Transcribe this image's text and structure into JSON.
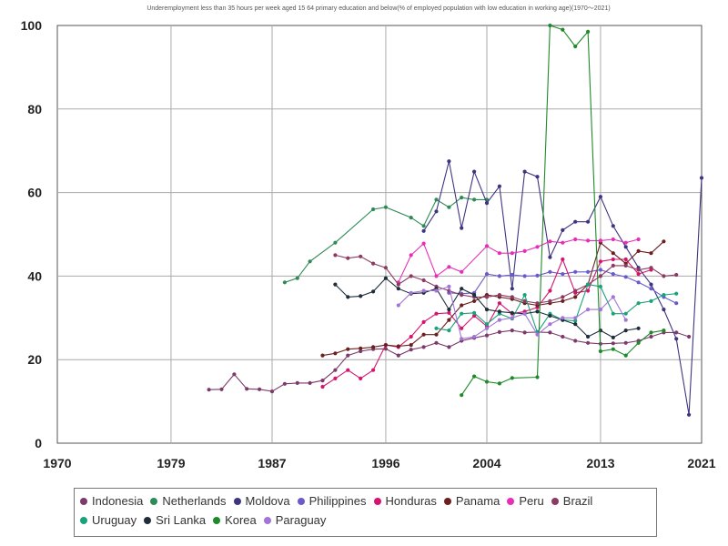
{
  "chart_data": {
    "type": "line",
    "title": "Underemployment less than 35 hours per week aged 15 64 primary education and below(% of employed population with low education in working age)(1970～2021)",
    "ylabel": "",
    "xlabel": "",
    "xlim": [
      1970,
      2021
    ],
    "ylim": [
      0,
      100
    ],
    "x_ticks": [
      1970,
      1979,
      1987,
      1996,
      2004,
      2013,
      2021
    ],
    "y_ticks": [
      0,
      20,
      40,
      60,
      80,
      100
    ],
    "grid": true,
    "legend_position": "bottom",
    "series": [
      {
        "name": "Indonesia",
        "color": "#7b3a6b",
        "x": [
          1982,
          1983,
          1984,
          1985,
          1986,
          1987,
          1988,
          1989,
          1990,
          1991,
          1992,
          1993,
          1994,
          1995,
          1996,
          1997,
          1998,
          1999,
          2000,
          2001,
          2002,
          2003,
          2004,
          2005,
          2006,
          2007,
          2008,
          2009,
          2010,
          2011,
          2012,
          2013,
          2014,
          2015,
          2016,
          2017,
          2018,
          2019,
          2020
        ],
        "y": [
          12.8,
          12.9,
          16.5,
          13.0,
          12.9,
          12.4,
          14.2,
          14.4,
          14.4,
          15.0,
          17.5,
          21.0,
          22.0,
          22.5,
          22.6,
          21.0,
          22.4,
          23.0,
          24.0,
          23.0,
          24.5,
          25.2,
          25.8,
          26.6,
          27.0,
          26.5,
          26.6,
          26.5,
          25.5,
          24.5,
          24.0,
          23.8,
          23.9,
          24.0,
          24.5,
          25.5,
          26.5,
          26.5,
          25.5
        ]
      },
      {
        "name": "Netherlands",
        "color": "#2e8b57",
        "x": [
          1988,
          1989,
          1990,
          1992,
          1995,
          1996,
          1998,
          1999,
          2000,
          2001,
          2002,
          2003,
          2004
        ],
        "y": [
          38.5,
          39.5,
          43.5,
          48.0,
          56.0,
          56.5,
          54.0,
          52.0,
          58.3,
          56.5,
          58.8,
          58.3,
          58.3
        ]
      },
      {
        "name": "Moldova",
        "color": "#3d3580",
        "x": [
          1999,
          2000,
          2001,
          2002,
          2003,
          2004,
          2005,
          2006,
          2007,
          2008,
          2009,
          2010,
          2011,
          2012,
          2013,
          2014,
          2015,
          2016,
          2017,
          2018,
          2019,
          2020,
          2021
        ],
        "y": [
          50.8,
          55.5,
          67.5,
          51.5,
          65.0,
          57.5,
          61.5,
          37.0,
          65.0,
          63.8,
          44.5,
          51.0,
          53.0,
          53.0,
          59.0,
          52.0,
          47.0,
          42.0,
          38.0,
          32.0,
          25.0,
          6.8,
          63.5
        ]
      },
      {
        "name": "Philippines",
        "color": "#6a5acd",
        "x": [
          2001,
          2002,
          2003,
          2004,
          2005,
          2006,
          2007,
          2008,
          2009,
          2010,
          2011,
          2012,
          2013,
          2014,
          2015,
          2016,
          2017,
          2018,
          2019
        ],
        "y": [
          36.0,
          35.8,
          36.0,
          40.5,
          40.0,
          40.3,
          40.0,
          40.1,
          41.0,
          40.5,
          41.0,
          41.0,
          41.5,
          40.5,
          39.8,
          38.5,
          37.0,
          35.0,
          33.5
        ]
      },
      {
        "name": "Honduras",
        "color": "#d6136e",
        "x": [
          1991,
          1992,
          1993,
          1994,
          1995,
          1996,
          1997,
          1998,
          1999,
          2000,
          2001,
          2002,
          2003,
          2004,
          2005,
          2006,
          2007,
          2008,
          2009,
          2010,
          2011,
          2012,
          2013,
          2014,
          2015,
          2016,
          2017
        ],
        "y": [
          13.5,
          15.5,
          17.5,
          15.5,
          17.5,
          23.5,
          23.0,
          25.5,
          29.0,
          31.0,
          31.2,
          27.5,
          30.5,
          28.0,
          33.5,
          31.0,
          31.5,
          32.5,
          36.5,
          44.0,
          36.0,
          36.5,
          43.5,
          44.0,
          44.0,
          40.5,
          41.5
        ]
      },
      {
        "name": "Panama",
        "color": "#6b2020",
        "x": [
          1991,
          1992,
          1993,
          1994,
          1995,
          1996,
          1997,
          1998,
          1999,
          2000,
          2001,
          2002,
          2003,
          2004,
          2005,
          2006,
          2007,
          2008,
          2009,
          2010,
          2011,
          2012,
          2013,
          2014,
          2015,
          2016,
          2017,
          2018
        ],
        "y": [
          21.0,
          21.5,
          22.5,
          22.7,
          23.0,
          23.5,
          23.2,
          23.5,
          26.0,
          26.0,
          29.5,
          33.0,
          34.0,
          35.5,
          35.0,
          34.5,
          33.5,
          33.0,
          33.5,
          34.0,
          35.0,
          38.0,
          48.0,
          45.5,
          43.0,
          46.0,
          45.5,
          48.3
        ]
      },
      {
        "name": "Peru",
        "color": "#e82eb8",
        "x": [
          1997,
          1998,
          1999,
          2000,
          2001,
          2002,
          2004,
          2005,
          2006,
          2007,
          2008,
          2009,
          2010,
          2011,
          2012,
          2013,
          2014,
          2015,
          2016
        ],
        "y": [
          38.5,
          45.0,
          47.8,
          40.0,
          42.2,
          41.0,
          47.2,
          45.5,
          45.5,
          46.0,
          47.0,
          48.3,
          48.0,
          48.8,
          48.5,
          48.5,
          48.8,
          48.0,
          48.8
        ]
      },
      {
        "name": "Brazil",
        "color": "#8b3a62",
        "x": [
          1992,
          1993,
          1994,
          1995,
          1996,
          1997,
          1998,
          1999,
          2000,
          2001,
          2002,
          2003,
          2004,
          2005,
          2006,
          2007,
          2008,
          2009,
          2010,
          2011,
          2012,
          2013,
          2014,
          2015,
          2016,
          2017,
          2018,
          2019
        ],
        "y": [
          45.0,
          44.3,
          44.7,
          43.0,
          42.0,
          38.0,
          40.0,
          39.0,
          37.5,
          36.5,
          35.5,
          35.0,
          35.0,
          35.5,
          35.0,
          34.0,
          33.5,
          34.0,
          35.0,
          36.5,
          38.0,
          40.0,
          42.5,
          42.5,
          41.5,
          42.0,
          40.0,
          40.3
        ]
      },
      {
        "name": "Uruguay",
        "color": "#1aa37a",
        "x": [
          2000,
          2001,
          2002,
          2003,
          2004,
          2005,
          2006,
          2007,
          2008,
          2009,
          2010,
          2011,
          2012,
          2013,
          2014,
          2015,
          2016,
          2017,
          2018,
          2019
        ],
        "y": [
          27.5,
          27.0,
          31.0,
          31.2,
          28.5,
          31.0,
          29.8,
          35.5,
          26.5,
          31.0,
          29.5,
          29.3,
          38.0,
          37.5,
          31.0,
          31.0,
          33.5,
          34.0,
          35.5,
          35.8
        ]
      },
      {
        "name": "Sri Lanka",
        "color": "#1f2e3a",
        "x": [
          1992,
          1993,
          1994,
          1995,
          1996,
          1997,
          1998,
          1999,
          2000,
          2001,
          2002,
          2003,
          2004,
          2005,
          2006,
          2007,
          2008,
          2009,
          2010,
          2011,
          2012,
          2013,
          2014,
          2015,
          2016
        ],
        "y": [
          38.0,
          35.0,
          35.2,
          36.3,
          39.5,
          37.0,
          35.8,
          36.0,
          37.0,
          32.0,
          37.0,
          35.5,
          32.0,
          31.5,
          31.2,
          31.0,
          31.5,
          30.5,
          29.5,
          28.5,
          25.5,
          27.0,
          25.3,
          27.0,
          27.5
        ]
      },
      {
        "name": "Korea",
        "color": "#1e8a2a",
        "x": [
          2002,
          2003,
          2004,
          2005,
          2006,
          2008,
          2009,
          2010,
          2011,
          2012,
          2013,
          2014,
          2015,
          2016,
          2017,
          2018
        ],
        "y": [
          11.5,
          16.0,
          14.7,
          14.3,
          15.6,
          15.8,
          100.0,
          99.0,
          95.0,
          98.5,
          22.0,
          22.5,
          21.0,
          24.0,
          26.5,
          27.0
        ]
      },
      {
        "name": "Paraguay",
        "color": "#a374d9",
        "x": [
          1997,
          1998,
          1999,
          2000,
          2001,
          2002,
          2003,
          2004,
          2005,
          2006,
          2007,
          2008,
          2009,
          2010,
          2011,
          2012,
          2013,
          2014,
          2015
        ],
        "y": [
          33.0,
          36.0,
          36.5,
          36.5,
          37.5,
          25.0,
          25.5,
          27.5,
          29.5,
          30.0,
          31.0,
          26.0,
          28.5,
          30.0,
          30.0,
          32.0,
          32.0,
          35.0,
          29.5
        ]
      }
    ]
  }
}
